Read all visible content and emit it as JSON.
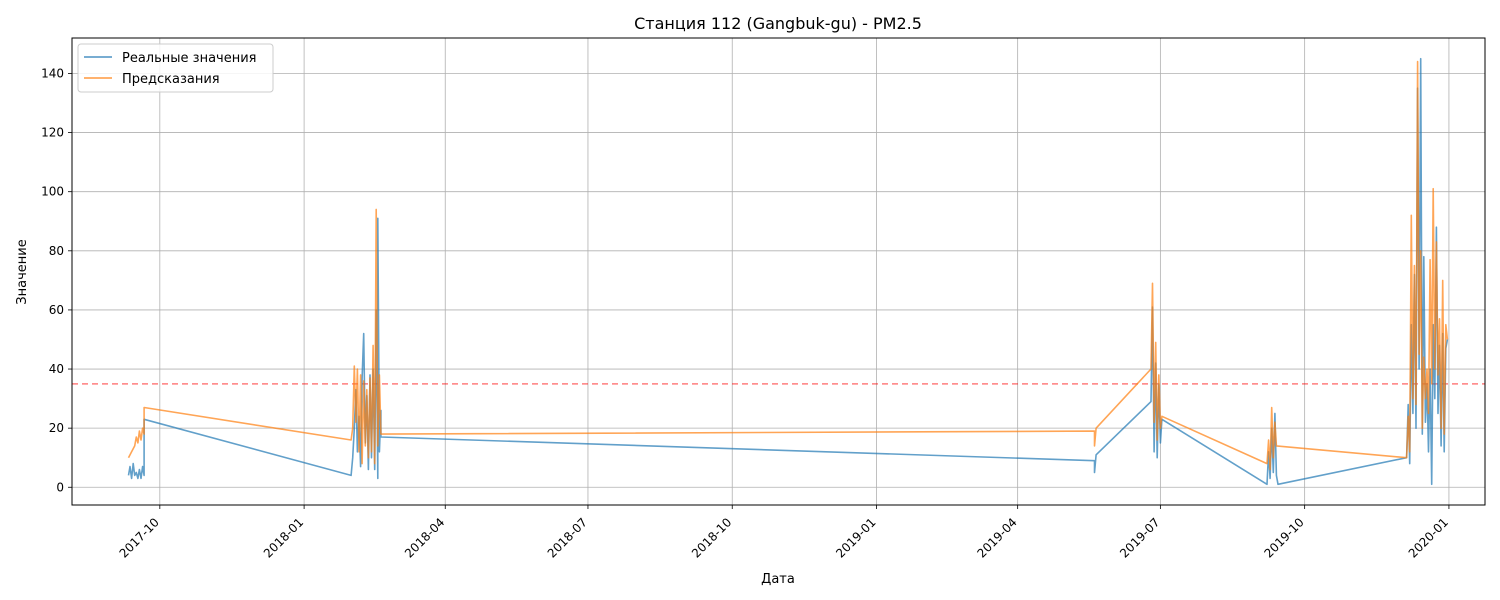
{
  "chart_data": {
    "type": "line",
    "title": "Станция 112 (Gangbuk-gu) - PM2.5",
    "xlabel": "Дата",
    "ylabel": "Значение",
    "xlim": [
      "2017-08-06",
      "2020-01-24"
    ],
    "ylim": [
      -6,
      152
    ],
    "grid": true,
    "legend_position": "upper-left",
    "yticks": [
      0,
      20,
      40,
      60,
      80,
      100,
      120,
      140
    ],
    "xticks": [
      "2017-10",
      "2018-01",
      "2018-04",
      "2018-07",
      "2018-10",
      "2019-01",
      "2019-04",
      "2019-07",
      "2019-10",
      "2020-01"
    ],
    "threshold": {
      "value": 35,
      "color": "#ff0000",
      "style": "dashed"
    },
    "series": [
      {
        "name": "Реальные значения",
        "color": "#1f77b4",
        "points": [
          [
            "2017-09-11",
            4
          ],
          [
            "2017-09-12",
            7
          ],
          [
            "2017-09-13",
            3
          ],
          [
            "2017-09-14",
            8
          ],
          [
            "2017-09-15",
            4
          ],
          [
            "2017-09-16",
            5
          ],
          [
            "2017-09-17",
            3
          ],
          [
            "2017-09-18",
            6
          ],
          [
            "2017-09-19",
            3
          ],
          [
            "2017-09-20",
            7
          ],
          [
            "2017-09-21",
            4
          ],
          [
            "2017-09-21",
            23
          ],
          [
            "2018-01-31",
            4
          ],
          [
            "2018-02-01",
            10
          ],
          [
            "2018-02-02",
            20
          ],
          [
            "2018-02-03",
            33
          ],
          [
            "2018-02-04",
            12
          ],
          [
            "2018-02-05",
            24
          ],
          [
            "2018-02-06",
            7
          ],
          [
            "2018-02-07",
            37
          ],
          [
            "2018-02-08",
            52
          ],
          [
            "2018-02-09",
            15
          ],
          [
            "2018-02-10",
            31
          ],
          [
            "2018-02-11",
            6
          ],
          [
            "2018-02-12",
            38
          ],
          [
            "2018-02-13",
            10
          ],
          [
            "2018-02-14",
            40
          ],
          [
            "2018-02-15",
            6
          ],
          [
            "2018-02-16",
            60
          ],
          [
            "2018-02-17",
            3
          ],
          [
            "2018-02-17",
            91
          ],
          [
            "2018-02-18",
            12
          ],
          [
            "2018-02-19",
            26
          ],
          [
            "2018-02-19",
            17
          ],
          [
            "2019-05-20",
            9
          ],
          [
            "2019-05-20",
            5
          ],
          [
            "2019-05-21",
            11
          ],
          [
            "2019-06-25",
            29
          ],
          [
            "2019-06-26",
            61
          ],
          [
            "2019-06-27",
            12
          ],
          [
            "2019-06-28",
            42
          ],
          [
            "2019-06-29",
            10
          ],
          [
            "2019-06-30",
            35
          ],
          [
            "2019-07-01",
            15
          ],
          [
            "2019-07-02",
            23
          ],
          [
            "2019-09-07",
            1
          ],
          [
            "2019-09-08",
            12
          ],
          [
            "2019-09-09",
            3
          ],
          [
            "2019-09-10",
            20
          ],
          [
            "2019-09-11",
            5
          ],
          [
            "2019-09-12",
            25
          ],
          [
            "2019-09-13",
            4
          ],
          [
            "2019-09-14",
            1
          ],
          [
            "2019-12-05",
            10
          ],
          [
            "2019-12-06",
            28
          ],
          [
            "2019-12-07",
            8
          ],
          [
            "2019-12-08",
            55
          ],
          [
            "2019-12-09",
            25
          ],
          [
            "2019-12-10",
            72
          ],
          [
            "2019-12-11",
            20
          ],
          [
            "2019-12-12",
            135
          ],
          [
            "2019-12-13",
            40
          ],
          [
            "2019-12-14",
            145
          ],
          [
            "2019-12-15",
            18
          ],
          [
            "2019-12-16",
            78
          ],
          [
            "2019-12-17",
            22
          ],
          [
            "2019-12-18",
            35
          ],
          [
            "2019-12-19",
            12
          ],
          [
            "2019-12-20",
            40
          ],
          [
            "2019-12-21",
            1
          ],
          [
            "2019-12-22",
            55
          ],
          [
            "2019-12-23",
            30
          ],
          [
            "2019-12-24",
            88
          ],
          [
            "2019-12-25",
            25
          ],
          [
            "2019-12-26",
            48
          ],
          [
            "2019-12-27",
            14
          ],
          [
            "2019-12-28",
            52
          ],
          [
            "2019-12-29",
            12
          ],
          [
            "2019-12-30",
            47
          ],
          [
            "2019-12-31",
            50
          ]
        ]
      },
      {
        "name": "Предсказания",
        "color": "#ff7f0e",
        "points": [
          [
            "2017-09-11",
            10
          ],
          [
            "2017-09-13",
            12
          ],
          [
            "2017-09-15",
            14
          ],
          [
            "2017-09-16",
            17
          ],
          [
            "2017-09-17",
            15
          ],
          [
            "2017-09-18",
            19
          ],
          [
            "2017-09-19",
            16
          ],
          [
            "2017-09-20",
            20
          ],
          [
            "2017-09-21",
            18
          ],
          [
            "2017-09-21",
            27
          ],
          [
            "2018-01-31",
            16
          ],
          [
            "2018-02-01",
            20
          ],
          [
            "2018-02-02",
            41
          ],
          [
            "2018-02-03",
            22
          ],
          [
            "2018-02-04",
            40
          ],
          [
            "2018-02-05",
            12
          ],
          [
            "2018-02-06",
            38
          ],
          [
            "2018-02-07",
            8
          ],
          [
            "2018-02-08",
            36
          ],
          [
            "2018-02-09",
            14
          ],
          [
            "2018-02-10",
            33
          ],
          [
            "2018-02-11",
            10
          ],
          [
            "2018-02-12",
            37
          ],
          [
            "2018-02-13",
            12
          ],
          [
            "2018-02-14",
            48
          ],
          [
            "2018-02-15",
            8
          ],
          [
            "2018-02-16",
            94
          ],
          [
            "2018-02-17",
            14
          ],
          [
            "2018-02-18",
            38
          ],
          [
            "2018-02-19",
            18
          ],
          [
            "2019-05-20",
            19
          ],
          [
            "2019-05-20",
            14
          ],
          [
            "2019-05-21",
            20
          ],
          [
            "2019-06-25",
            40
          ],
          [
            "2019-06-26",
            69
          ],
          [
            "2019-06-27",
            22
          ],
          [
            "2019-06-28",
            49
          ],
          [
            "2019-06-29",
            16
          ],
          [
            "2019-06-30",
            38
          ],
          [
            "2019-07-01",
            20
          ],
          [
            "2019-07-02",
            24
          ],
          [
            "2019-09-07",
            8
          ],
          [
            "2019-09-08",
            16
          ],
          [
            "2019-09-09",
            6
          ],
          [
            "2019-09-10",
            27
          ],
          [
            "2019-09-11",
            10
          ],
          [
            "2019-09-12",
            22
          ],
          [
            "2019-09-13",
            14
          ],
          [
            "2019-12-05",
            10
          ],
          [
            "2019-12-06",
            24
          ],
          [
            "2019-12-07",
            12
          ],
          [
            "2019-12-08",
            92
          ],
          [
            "2019-12-09",
            30
          ],
          [
            "2019-12-10",
            75
          ],
          [
            "2019-12-11",
            28
          ],
          [
            "2019-12-12",
            144
          ],
          [
            "2019-12-13",
            45
          ],
          [
            "2019-12-14",
            80
          ],
          [
            "2019-12-15",
            20
          ],
          [
            "2019-12-16",
            44
          ],
          [
            "2019-12-17",
            30
          ],
          [
            "2019-12-18",
            40
          ],
          [
            "2019-12-19",
            25
          ],
          [
            "2019-12-20",
            77
          ],
          [
            "2019-12-21",
            35
          ],
          [
            "2019-12-22",
            101
          ],
          [
            "2019-12-23",
            40
          ],
          [
            "2019-12-24",
            83
          ],
          [
            "2019-12-25",
            38
          ],
          [
            "2019-12-26",
            57
          ],
          [
            "2019-12-27",
            20
          ],
          [
            "2019-12-28",
            70
          ],
          [
            "2019-12-29",
            18
          ],
          [
            "2019-12-30",
            55
          ],
          [
            "2019-12-31",
            50
          ]
        ]
      }
    ]
  }
}
